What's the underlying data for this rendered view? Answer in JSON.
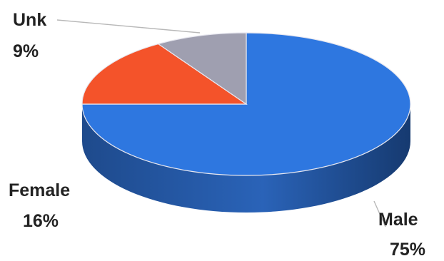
{
  "chart_data": {
    "type": "pie",
    "style": "3d",
    "slices": [
      {
        "label": "Male",
        "value": 75,
        "value_label": "75%",
        "color": "#2e77e0",
        "side_color": "#1f4f99"
      },
      {
        "label": "Female",
        "value": 16,
        "value_label": "16%",
        "color": "#f4532a",
        "side_color": "#b23a1c"
      },
      {
        "label": "Unk",
        "value": 9,
        "value_label": "9%",
        "color": "#9f9fb0",
        "side_color": "#6c6c7c"
      }
    ],
    "legend": "none",
    "data_labels": "outside with leader lines"
  }
}
